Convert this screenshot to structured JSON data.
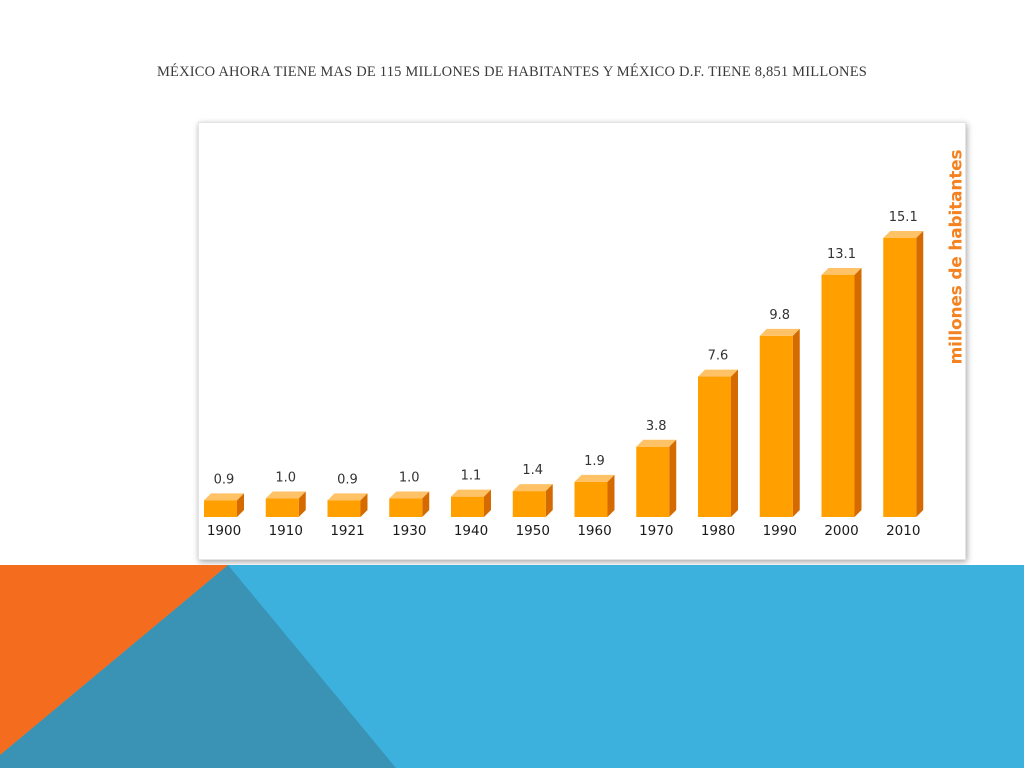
{
  "slide": {
    "title": "MÉXICO AHORA TIENE MAS DE 115 MILLONES DE HABITANTES Y MÉXICO D.F. TIENE 8,851 MILLONES"
  },
  "colors": {
    "bar_front": "#ff9f00",
    "bar_top": "#ffc266",
    "bar_side": "#d46a00",
    "label_orange": "#f58220",
    "bg_orange": "#f46c1e",
    "bg_blue": "#3db1dd",
    "bg_steel": "#3a93b4"
  },
  "chart_data": {
    "type": "bar",
    "title": "",
    "xlabel": "",
    "ylabel": "millones de habitantes",
    "categories": [
      "1900",
      "1910",
      "1921",
      "1930",
      "1940",
      "1950",
      "1960",
      "1970",
      "1980",
      "1990",
      "2000",
      "2010"
    ],
    "values": [
      0.9,
      1.0,
      0.9,
      1.0,
      1.1,
      1.4,
      1.9,
      3.8,
      7.6,
      9.8,
      13.1,
      15.1
    ],
    "value_labels": [
      "0.9",
      "1.0",
      "0.9",
      "1.0",
      "1.1",
      "1.4",
      "1.9",
      "3.8",
      "7.6",
      "9.8",
      "13.1",
      "15.1"
    ],
    "ylim": [
      0,
      15.1
    ],
    "grid": false,
    "legend": "none",
    "style": "3d-bars"
  }
}
